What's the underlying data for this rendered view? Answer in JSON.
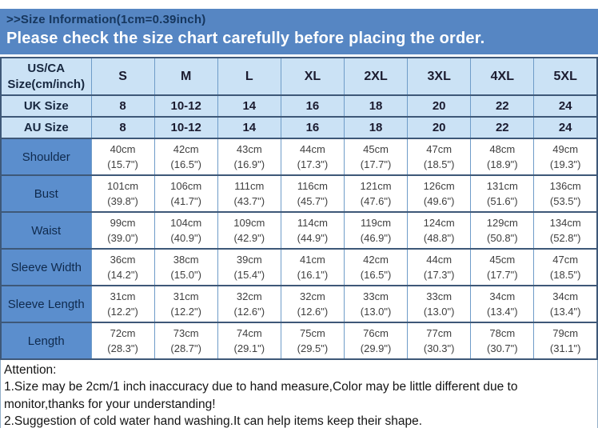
{
  "header": {
    "size_info": ">>Size Information(1cm=0.39inch)",
    "notice": "Please check the size chart carefully before placing the order."
  },
  "size_table": {
    "corner_label_line1": "US/CA",
    "corner_label_line2": "Size(cm/inch)",
    "size_columns": [
      "S",
      "M",
      "L",
      "XL",
      "2XL",
      "3XL",
      "4XL",
      "5XL"
    ],
    "size_rows": [
      {
        "label": "UK Size",
        "values": [
          "8",
          "10-12",
          "14",
          "16",
          "18",
          "20",
          "22",
          "24"
        ]
      },
      {
        "label": "AU Size",
        "values": [
          "8",
          "10-12",
          "14",
          "16",
          "18",
          "20",
          "22",
          "24"
        ]
      }
    ],
    "measurement_rows": [
      {
        "label": "Shoulder",
        "cm": [
          "40cm",
          "42cm",
          "43cm",
          "44cm",
          "45cm",
          "47cm",
          "48cm",
          "49cm"
        ],
        "inch": [
          "(15.7\")",
          "(16.5\")",
          "(16.9\")",
          "(17.3\")",
          "(17.7\")",
          "(18.5\")",
          "(18.9\")",
          "(19.3\")"
        ]
      },
      {
        "label": "Bust",
        "cm": [
          "101cm",
          "106cm",
          "111cm",
          "116cm",
          "121cm",
          "126cm",
          "131cm",
          "136cm"
        ],
        "inch": [
          "(39.8\")",
          "(41.7\")",
          "(43.7\")",
          "(45.7\")",
          "(47.6\")",
          "(49.6\")",
          "(51.6\")",
          "(53.5\")"
        ]
      },
      {
        "label": "Waist",
        "cm": [
          "99cm",
          "104cm",
          "109cm",
          "114cm",
          "119cm",
          "124cm",
          "129cm",
          "134cm"
        ],
        "inch": [
          "(39.0\")",
          "(40.9\")",
          "(42.9\")",
          "(44.9\")",
          "(46.9\")",
          "(48.8\")",
          "(50.8\")",
          "(52.8\")"
        ]
      },
      {
        "label": "Sleeve Width",
        "cm": [
          "36cm",
          "38cm",
          "39cm",
          "41cm",
          "42cm",
          "44cm",
          "45cm",
          "47cm"
        ],
        "inch": [
          "(14.2\")",
          "(15.0\")",
          "(15.4\")",
          "(16.1\")",
          "(16.5\")",
          "(17.3\")",
          "(17.7\")",
          "(18.5\")"
        ]
      },
      {
        "label": "Sleeve Length",
        "cm": [
          "31cm",
          "31cm",
          "32cm",
          "32cm",
          "33cm",
          "33cm",
          "34cm",
          "34cm"
        ],
        "inch": [
          "(12.2\")",
          "(12.2\")",
          "(12.6\")",
          "(12.6\")",
          "(13.0\")",
          "(13.0\")",
          "(13.4\")",
          "(13.4\")"
        ]
      },
      {
        "label": "Length",
        "cm": [
          "72cm",
          "73cm",
          "74cm",
          "75cm",
          "76cm",
          "77cm",
          "78cm",
          "79cm"
        ],
        "inch": [
          "(28.3\")",
          "(28.7\")",
          "(29.1\")",
          "(29.5\")",
          "(29.9\")",
          "(30.3\")",
          "(30.7\")",
          "(31.1\")"
        ]
      }
    ]
  },
  "attention": {
    "title": "Attention:",
    "notes": [
      "1.Size may be 2cm/1 inch inaccuracy due to hand measure,Color may be little different due to monitor,thanks for your understanding!",
      "2.Suggestion of cold water hand washing.It can help items keep their shape."
    ]
  },
  "colors": {
    "banner_blue": "#5686c3",
    "banner_title_text": "#16365d",
    "header_light_blue": "#cbe2f5",
    "label_blue": "#5b8ecd",
    "border_dark": "#3e5878",
    "border_light": "#6f9cc8"
  }
}
